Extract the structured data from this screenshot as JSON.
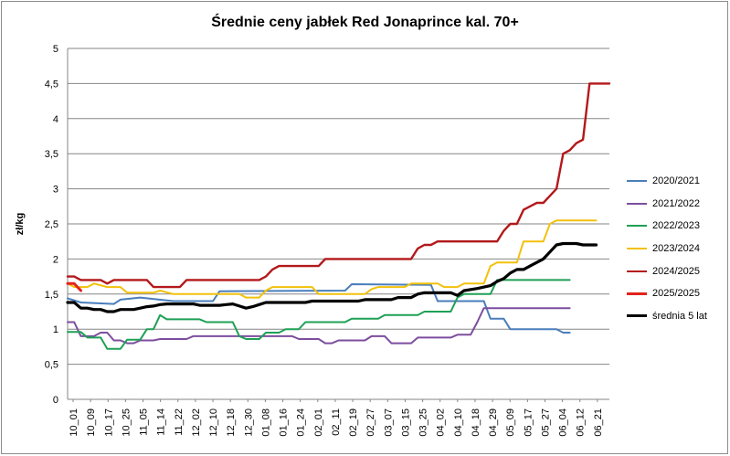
{
  "chart_data": {
    "type": "line",
    "title": "Średnie ceny jabłek Red Jonaprince kal. 70+",
    "xlabel": "",
    "ylabel": "zł/kg",
    "ylim": [
      0,
      5
    ],
    "yticks": [
      "0",
      "0,5",
      "1",
      "1,5",
      "2",
      "2,5",
      "3",
      "3,5",
      "4",
      "4,5",
      "5"
    ],
    "grid": true,
    "legend_position": "right",
    "x_tick_labels": [
      "10_01",
      "10_09",
      "10_17",
      "10_25",
      "11_05",
      "11_14",
      "11_22",
      "12_02",
      "12_10",
      "12_18",
      "12_30",
      "01_08",
      "01_16",
      "01_24",
      "02_01",
      "02_11",
      "02_19",
      "02_27",
      "03_07",
      "03_15",
      "03_25",
      "04_02",
      "04_10",
      "04_18",
      "04_29",
      "05_09",
      "05_17",
      "05_27",
      "06_04",
      "06_12",
      "06_21"
    ],
    "series": [
      {
        "name": "2020/2021",
        "color": "#4A7EBB",
        "width": 2,
        "points": [
          [
            0,
            1.44
          ],
          [
            2,
            1.38
          ],
          [
            7,
            1.36
          ],
          [
            8,
            1.42
          ],
          [
            11,
            1.45
          ],
          [
            16,
            1.4
          ],
          [
            22,
            1.4
          ],
          [
            23,
            1.54
          ],
          [
            42,
            1.55
          ],
          [
            43,
            1.64
          ],
          [
            55,
            1.63
          ],
          [
            56,
            1.4
          ],
          [
            63,
            1.4
          ],
          [
            64,
            1.15
          ],
          [
            66,
            1.15
          ],
          [
            67,
            1.0
          ],
          [
            74,
            1.0
          ],
          [
            75,
            0.95
          ],
          [
            76,
            0.95
          ]
        ]
      },
      {
        "name": "2021/2022",
        "color": "#7D4E9F",
        "width": 2,
        "points": [
          [
            0,
            1.1
          ],
          [
            1,
            1.1
          ],
          [
            2,
            0.9
          ],
          [
            4,
            0.9
          ],
          [
            5,
            0.95
          ],
          [
            6,
            0.95
          ],
          [
            7,
            0.84
          ],
          [
            8,
            0.84
          ],
          [
            9,
            0.8
          ],
          [
            10,
            0.8
          ],
          [
            11,
            0.84
          ],
          [
            13,
            0.84
          ],
          [
            14,
            0.86
          ],
          [
            18,
            0.86
          ],
          [
            19,
            0.9
          ],
          [
            34,
            0.9
          ],
          [
            35,
            0.86
          ],
          [
            38,
            0.86
          ],
          [
            39,
            0.8
          ],
          [
            40,
            0.8
          ],
          [
            41,
            0.84
          ],
          [
            45,
            0.84
          ],
          [
            46,
            0.9
          ],
          [
            48,
            0.9
          ],
          [
            49,
            0.8
          ],
          [
            52,
            0.8
          ],
          [
            53,
            0.88
          ],
          [
            58,
            0.88
          ],
          [
            59,
            0.92
          ],
          [
            61,
            0.92
          ],
          [
            62,
            1.1
          ],
          [
            63,
            1.3
          ],
          [
            76,
            1.3
          ]
        ]
      },
      {
        "name": "2022/2023",
        "color": "#1FA055",
        "width": 2,
        "points": [
          [
            0,
            0.96
          ],
          [
            2,
            0.96
          ],
          [
            3,
            0.88
          ],
          [
            5,
            0.88
          ],
          [
            6,
            0.72
          ],
          [
            8,
            0.72
          ],
          [
            9,
            0.85
          ],
          [
            11,
            0.85
          ],
          [
            12,
            1.0
          ],
          [
            13,
            1.0
          ],
          [
            14,
            1.2
          ],
          [
            15,
            1.14
          ],
          [
            20,
            1.14
          ],
          [
            21,
            1.1
          ],
          [
            25,
            1.1
          ],
          [
            26,
            0.9
          ],
          [
            27,
            0.86
          ],
          [
            29,
            0.86
          ],
          [
            30,
            0.95
          ],
          [
            32,
            0.95
          ],
          [
            33,
            1.0
          ],
          [
            35,
            1.0
          ],
          [
            36,
            1.1
          ],
          [
            42,
            1.1
          ],
          [
            43,
            1.15
          ],
          [
            47,
            1.15
          ],
          [
            48,
            1.2
          ],
          [
            53,
            1.2
          ],
          [
            54,
            1.25
          ],
          [
            58,
            1.25
          ],
          [
            59,
            1.45
          ],
          [
            60,
            1.5
          ],
          [
            64,
            1.5
          ],
          [
            65,
            1.7
          ],
          [
            76,
            1.7
          ]
        ]
      },
      {
        "name": "2023/2024",
        "color": "#F2C10C",
        "width": 2,
        "points": [
          [
            0,
            1.65
          ],
          [
            1,
            1.6
          ],
          [
            3,
            1.6
          ],
          [
            4,
            1.65
          ],
          [
            6,
            1.6
          ],
          [
            8,
            1.6
          ],
          [
            9,
            1.52
          ],
          [
            13,
            1.52
          ],
          [
            14,
            1.55
          ],
          [
            16,
            1.5
          ],
          [
            26,
            1.5
          ],
          [
            27,
            1.45
          ],
          [
            29,
            1.45
          ],
          [
            30,
            1.55
          ],
          [
            31,
            1.6
          ],
          [
            37,
            1.6
          ],
          [
            38,
            1.5
          ],
          [
            45,
            1.5
          ],
          [
            46,
            1.57
          ],
          [
            47,
            1.6
          ],
          [
            51,
            1.6
          ],
          [
            52,
            1.65
          ],
          [
            56,
            1.65
          ],
          [
            57,
            1.6
          ],
          [
            59,
            1.6
          ],
          [
            60,
            1.65
          ],
          [
            63,
            1.65
          ],
          [
            64,
            1.9
          ],
          [
            65,
            1.95
          ],
          [
            68,
            1.95
          ],
          [
            69,
            2.25
          ],
          [
            72,
            2.25
          ],
          [
            73,
            2.5
          ],
          [
            74,
            2.55
          ],
          [
            80,
            2.55
          ]
        ]
      },
      {
        "name": "2024/2025",
        "color": "#B3181B",
        "width": 2.4,
        "points": [
          [
            0,
            1.75
          ],
          [
            1,
            1.75
          ],
          [
            2,
            1.7
          ],
          [
            5,
            1.7
          ],
          [
            6,
            1.65
          ],
          [
            7,
            1.7
          ],
          [
            12,
            1.7
          ],
          [
            13,
            1.6
          ],
          [
            17,
            1.6
          ],
          [
            18,
            1.7
          ],
          [
            29,
            1.7
          ],
          [
            30,
            1.75
          ],
          [
            31,
            1.85
          ],
          [
            32,
            1.9
          ],
          [
            38,
            1.9
          ],
          [
            39,
            2.0
          ],
          [
            52,
            2.0
          ],
          [
            53,
            2.15
          ],
          [
            54,
            2.2
          ],
          [
            55,
            2.2
          ],
          [
            56,
            2.25
          ],
          [
            65,
            2.25
          ],
          [
            66,
            2.4
          ],
          [
            67,
            2.5
          ],
          [
            68,
            2.5
          ],
          [
            69,
            2.7
          ],
          [
            70,
            2.75
          ],
          [
            71,
            2.8
          ],
          [
            72,
            2.8
          ],
          [
            73,
            2.9
          ],
          [
            74,
            3.0
          ],
          [
            75,
            3.5
          ],
          [
            76,
            3.55
          ],
          [
            77,
            3.65
          ],
          [
            78,
            3.7
          ],
          [
            79,
            4.5
          ],
          [
            82,
            4.5
          ]
        ]
      },
      {
        "name": "2025/2025",
        "color": "#E3231C",
        "width": 3,
        "points": [
          [
            0,
            1.65
          ],
          [
            1,
            1.65
          ],
          [
            1.5,
            1.6
          ],
          [
            2,
            1.55
          ]
        ]
      },
      {
        "name": "średnia 5 lat",
        "color": "#000000",
        "width": 3.2,
        "points": [
          [
            0,
            1.38
          ],
          [
            1,
            1.38
          ],
          [
            2,
            1.3
          ],
          [
            3,
            1.3
          ],
          [
            4,
            1.28
          ],
          [
            5,
            1.28
          ],
          [
            6,
            1.25
          ],
          [
            7,
            1.25
          ],
          [
            8,
            1.28
          ],
          [
            10,
            1.28
          ],
          [
            11,
            1.3
          ],
          [
            12,
            1.32
          ],
          [
            13,
            1.33
          ],
          [
            14,
            1.35
          ],
          [
            15,
            1.36
          ],
          [
            19,
            1.36
          ],
          [
            20,
            1.34
          ],
          [
            23,
            1.34
          ],
          [
            24,
            1.35
          ],
          [
            25,
            1.36
          ],
          [
            26,
            1.33
          ],
          [
            27,
            1.3
          ],
          [
            28,
            1.32
          ],
          [
            29,
            1.35
          ],
          [
            30,
            1.38
          ],
          [
            36,
            1.38
          ],
          [
            37,
            1.4
          ],
          [
            44,
            1.4
          ],
          [
            45,
            1.42
          ],
          [
            49,
            1.42
          ],
          [
            50,
            1.45
          ],
          [
            52,
            1.45
          ],
          [
            53,
            1.5
          ],
          [
            54,
            1.52
          ],
          [
            58,
            1.52
          ],
          [
            59,
            1.48
          ],
          [
            60,
            1.55
          ],
          [
            62,
            1.58
          ],
          [
            64,
            1.62
          ],
          [
            65,
            1.68
          ],
          [
            66,
            1.72
          ],
          [
            67,
            1.8
          ],
          [
            68,
            1.85
          ],
          [
            69,
            1.85
          ],
          [
            70,
            1.9
          ],
          [
            71,
            1.95
          ],
          [
            72,
            2.0
          ],
          [
            73,
            2.1
          ],
          [
            74,
            2.2
          ],
          [
            75,
            2.22
          ],
          [
            77,
            2.22
          ],
          [
            78,
            2.2
          ],
          [
            80,
            2.2
          ]
        ]
      }
    ]
  }
}
